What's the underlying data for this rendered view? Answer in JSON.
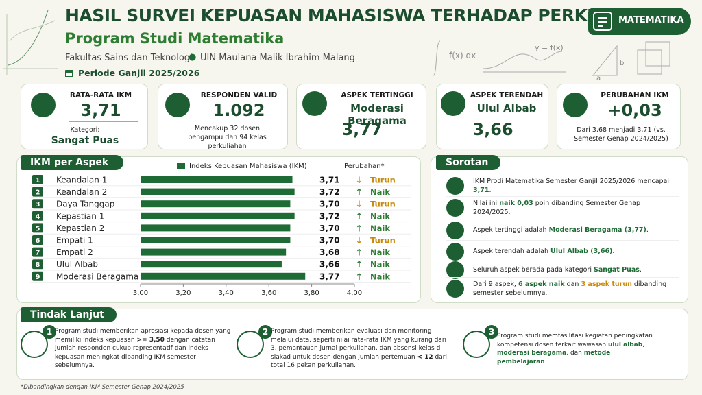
{
  "header": {
    "title": "HASIL SURVEI KEPUASAN MAHASISWA TERHADAP PERKULIAHAN",
    "subtitle": "Program Studi Matematika",
    "faculty": "Fakultas Sains dan Teknologi",
    "university": "UIN Maulana Malik Ibrahim Malang",
    "period": "Periode Ganjil 2025/2026",
    "badge": "MATEMATIKA",
    "decor": [
      "f(x) dx",
      "y = f(x)",
      "a",
      "b"
    ]
  },
  "cards": [
    {
      "title": "RATA-RATA IKM",
      "value": "3,71",
      "label": "Kategori:",
      "highlight": "Sangat Puas"
    },
    {
      "title": "RESPONDEN VALID",
      "value": "1.092",
      "note": "Mencakup 32 dosen pengampu dan 94 kelas perkuliahan"
    },
    {
      "title": "ASPEK TERTINGGI",
      "highlight": "Moderasi Beragama",
      "value": "3,77"
    },
    {
      "title": "ASPEK TERENDAH",
      "highlight": "Ulul Albab",
      "value": "3,66"
    },
    {
      "title": "PERUBAHAN IKM",
      "value": "+0,03",
      "note": "Dari 3,68 menjadi 3,71 (vs. Semester Genap 2024/2025)"
    }
  ],
  "chart_data": {
    "type": "bar",
    "orientation": "horizontal",
    "title": "IKM per Aspek",
    "categories": [
      "Keandalan 1",
      "Keandalan 2",
      "Daya Tanggap",
      "Kepastian 1",
      "Kepastian 2",
      "Empati 1",
      "Empati 2",
      "Ulul Albab",
      "Moderasi Beragama"
    ],
    "ranks": [
      1,
      2,
      3,
      4,
      5,
      6,
      7,
      8,
      9
    ],
    "series": [
      {
        "name": "Indeks Kepuasan Mahasiswa (IKM)",
        "color": "#1e6b35",
        "values": [
          3.71,
          3.72,
          3.7,
          3.72,
          3.7,
          3.7,
          3.68,
          3.66,
          3.77
        ],
        "value_labels": [
          "3,71",
          "3,72",
          "3,70",
          "3,72",
          "3,70",
          "3,70",
          "3,68",
          "3,66",
          "3,77"
        ]
      }
    ],
    "change_title": "Perubahan*",
    "changes": [
      "Turun",
      "Naik",
      "Turun",
      "Naik",
      "Naik",
      "Turun",
      "Naik",
      "Naik",
      "Naik"
    ],
    "change_arrows": [
      "↓",
      "↑",
      "↓",
      "↑",
      "↑",
      "↓",
      "↑",
      "↑",
      "↑"
    ],
    "change_colors": [
      "#c98a0c",
      "#2e7d32",
      "#c98a0c",
      "#2e7d32",
      "#2e7d32",
      "#c98a0c",
      "#2e7d32",
      "#2e7d32",
      "#2e7d32"
    ],
    "xlim": [
      3.0,
      4.0
    ],
    "xticks": [
      {
        "value": 3.0,
        "label": "3,00"
      },
      {
        "value": 3.2,
        "label": "3,20"
      },
      {
        "value": 3.4,
        "label": "3,40"
      },
      {
        "value": 3.6,
        "label": "3,60"
      },
      {
        "value": 3.8,
        "label": "3,80"
      },
      {
        "value": 4.0,
        "label": "4,00"
      }
    ]
  },
  "highlights": {
    "title": "Sorotan",
    "items": [
      [
        {
          "t": "IKM Prodi Matematika Semester Ganjil 2025/2026 mencapai "
        },
        {
          "t": "3,71",
          "s": "g"
        },
        {
          "t": "."
        }
      ],
      [
        {
          "t": "Nilai ini "
        },
        {
          "t": "naik 0,03",
          "s": "g"
        },
        {
          "t": " poin dibanding Semester Genap 2024/2025."
        }
      ],
      [
        {
          "t": "Aspek tertinggi adalah "
        },
        {
          "t": "Moderasi Beragama (3,77)",
          "s": "g"
        },
        {
          "t": "."
        }
      ],
      [
        {
          "t": "Aspek terendah adalah "
        },
        {
          "t": "Ulul Albab (3,66)",
          "s": "g"
        },
        {
          "t": "."
        }
      ],
      [
        {
          "t": "Seluruh aspek berada pada kategori "
        },
        {
          "t": "Sangat Puas",
          "s": "g"
        },
        {
          "t": "."
        }
      ],
      [
        {
          "t": "Dari 9 aspek, "
        },
        {
          "t": "6 aspek naik",
          "s": "g"
        },
        {
          "t": " dan "
        },
        {
          "t": "3 aspek turun",
          "s": "o"
        },
        {
          "t": " dibanding semester sebelumnya."
        }
      ]
    ]
  },
  "follow_up": {
    "title": "Tindak Lanjut",
    "items": [
      {
        "number": 1,
        "text": [
          {
            "t": "Program studi memberikan apresiasi kepada dosen yang memiliki indeks kepuasan "
          },
          {
            "t": ">= 3,50",
            "s": "b"
          },
          {
            "t": " dengan catatan jumlah responden cukup representatif dan indeks kepuasan meningkat dibanding IKM semester sebelumnya."
          }
        ]
      },
      {
        "number": 2,
        "text": [
          {
            "t": "Program studi memberikan evaluasi dan monitoring melalui data, seperti nilai rata-rata IKM yang kurang dari 3, pemantauan jurnal perkuliahan, dan absensi kelas di siakad untuk dosen dengan jumlah pertemuan "
          },
          {
            "t": "< 12",
            "s": "b"
          },
          {
            "t": " dari total 16 pekan perkuliahan."
          }
        ]
      },
      {
        "number": 3,
        "text": [
          {
            "t": "Program studi memfasilitasi kegiatan peningkatan kompetensi dosen terkait wawasan "
          },
          {
            "t": "ulul albab",
            "s": "g"
          },
          {
            "t": ", "
          },
          {
            "t": "moderasi beragama",
            "s": "g"
          },
          {
            "t": ", dan "
          },
          {
            "t": "metode pembelajaran",
            "s": "g"
          },
          {
            "t": "."
          }
        ]
      }
    ]
  },
  "footnote": "*Dibandingkan dengan IKM Semester Genap 2024/2025"
}
